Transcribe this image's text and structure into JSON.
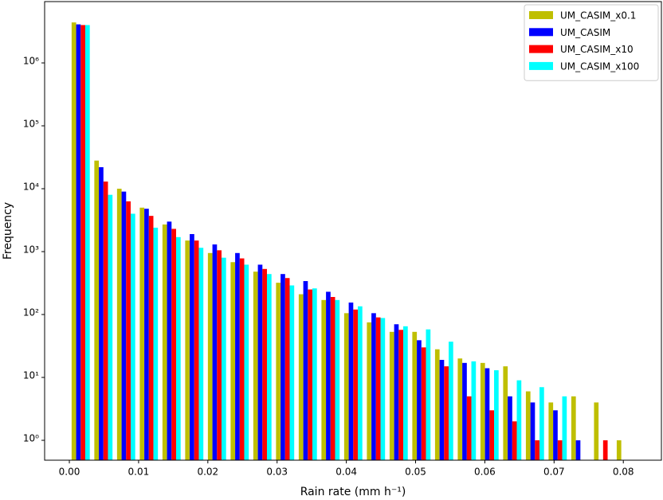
{
  "chart_data": {
    "type": "histogram",
    "x_label": "Rain rate (mm h⁻¹)",
    "y_label": "Frequency",
    "log_y": true,
    "legend": "upper right",
    "bins": [
      0,
      0.00328,
      0.00656,
      0.00984,
      0.01312,
      0.0164,
      0.01968,
      0.02296,
      0.02624,
      0.02952,
      0.0328,
      0.03608,
      0.03936,
      0.04264,
      0.04592,
      0.0492,
      0.05248,
      0.05576,
      0.05904,
      0.06232,
      0.0656,
      0.06888,
      0.07216,
      0.07544,
      0.07872,
      0.082
    ],
    "series": [
      {
        "name": "UM_CASIM_x0.1",
        "color": "#bfbf00",
        "values": [
          4400000,
          28000,
          10000,
          5000,
          2700,
          1500,
          950,
          680,
          480,
          320,
          210,
          170,
          105,
          75,
          53,
          53,
          28,
          20,
          17,
          15,
          6,
          4,
          5,
          4,
          1
        ]
      },
      {
        "name": "UM_CASIM",
        "color": "#0000ff",
        "values": [
          4100000,
          22000,
          9000,
          4800,
          3000,
          1900,
          1300,
          950,
          620,
          440,
          340,
          230,
          155,
          105,
          70,
          39,
          19,
          17,
          14,
          5,
          4,
          3,
          1,
          null,
          null
        ]
      },
      {
        "name": "UM_CASIM_x10",
        "color": "#ff0000",
        "values": [
          4000000,
          13000,
          6300,
          3700,
          2300,
          1500,
          1050,
          780,
          530,
          380,
          250,
          190,
          120,
          90,
          57,
          30,
          15,
          5,
          3,
          2,
          1,
          1,
          null,
          1,
          null
        ]
      },
      {
        "name": "UM_CASIM_x100",
        "color": "#00ffff",
        "values": [
          4000000,
          8000,
          4000,
          2400,
          1700,
          1150,
          800,
          620,
          440,
          290,
          260,
          170,
          135,
          88,
          65,
          58,
          37,
          18,
          13,
          9,
          7,
          5,
          null,
          null,
          null
        ]
      }
    ],
    "xlim": [
      -0.00357,
      0.0855
    ],
    "ylim": [
      0.483,
      9440000
    ],
    "xticks": [
      {
        "value": 0,
        "label": "0.00"
      },
      {
        "value": 0.01,
        "label": "0.01"
      },
      {
        "value": 0.02,
        "label": "0.02"
      },
      {
        "value": 0.03,
        "label": "0.03"
      },
      {
        "value": 0.04,
        "label": "0.04"
      },
      {
        "value": 0.05,
        "label": "0.05"
      },
      {
        "value": 0.06,
        "label": "0.06"
      },
      {
        "value": 0.07,
        "label": "0.07"
      },
      {
        "value": 0.08,
        "label": "0.08"
      }
    ],
    "yticks": [
      {
        "value": 1,
        "label": "10⁰"
      },
      {
        "value": 10,
        "label": "10¹"
      },
      {
        "value": 100,
        "label": "10²"
      },
      {
        "value": 1000,
        "label": "10³"
      },
      {
        "value": 10000,
        "label": "10⁴"
      },
      {
        "value": 100000,
        "label": "10⁵"
      },
      {
        "value": 1000000,
        "label": "10⁶"
      }
    ]
  }
}
